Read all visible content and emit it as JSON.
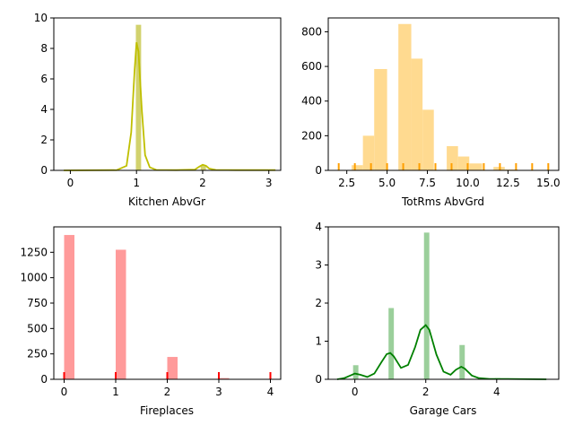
{
  "chart_data": [
    {
      "type": "histogram+kde",
      "xlabel": "Kitchen AbvGr",
      "ylabel": "",
      "xlim": [
        -0.25,
        3.18
      ],
      "ylim": [
        0,
        10
      ],
      "xticks": [
        0,
        1,
        2,
        3
      ],
      "yticks": [
        0,
        2,
        4,
        6,
        8,
        10
      ],
      "colors": {
        "fill": "#d2d26e",
        "line": "#bfbf00"
      },
      "bars": [
        {
          "x0": 0.99,
          "x1": 1.07,
          "value": 9.55
        },
        {
          "x0": 1.97,
          "x1": 2.05,
          "value": 0.35
        }
      ],
      "kde": [
        [
          -0.1,
          0
        ],
        [
          0.7,
          0.02
        ],
        [
          0.85,
          0.3
        ],
        [
          0.92,
          2.5
        ],
        [
          0.97,
          6.5
        ],
        [
          1.0,
          8.4
        ],
        [
          1.03,
          7.8
        ],
        [
          1.08,
          4.0
        ],
        [
          1.13,
          1.0
        ],
        [
          1.2,
          0.2
        ],
        [
          1.3,
          0.03
        ],
        [
          1.6,
          0.02
        ],
        [
          1.88,
          0.05
        ],
        [
          1.95,
          0.25
        ],
        [
          2.0,
          0.37
        ],
        [
          2.05,
          0.3
        ],
        [
          2.1,
          0.12
        ],
        [
          2.2,
          0.03
        ],
        [
          2.5,
          0.02
        ],
        [
          3.1,
          0.02
        ]
      ],
      "rug": []
    },
    {
      "type": "histogram+rug",
      "xlabel": "TotRms AbvGrd",
      "ylabel": "",
      "xlim": [
        1.35,
        15.65
      ],
      "ylim": [
        0,
        880
      ],
      "xticks": [
        2.5,
        5.0,
        7.5,
        10.0,
        12.5,
        15.0
      ],
      "xtick_labels": [
        "2.5",
        "5.0",
        "7.5",
        "10.0",
        "12.5",
        "15.0"
      ],
      "yticks": [
        0,
        200,
        400,
        600,
        800
      ],
      "colors": {
        "fill": "#ffda90",
        "rug": "#ff9f00"
      },
      "bars": [
        {
          "x0": 2.0,
          "x1": 2.8,
          "value": 0
        },
        {
          "x0": 2.8,
          "x1": 3.5,
          "value": 30
        },
        {
          "x0": 3.5,
          "x1": 4.2,
          "value": 200
        },
        {
          "x0": 4.2,
          "x1": 5.0,
          "value": 585
        },
        {
          "x0": 5.0,
          "x1": 5.7,
          "value": 0
        },
        {
          "x0": 5.7,
          "x1": 6.5,
          "value": 845
        },
        {
          "x0": 6.5,
          "x1": 7.2,
          "value": 645
        },
        {
          "x0": 7.2,
          "x1": 7.9,
          "value": 350
        },
        {
          "x0": 7.9,
          "x1": 8.7,
          "value": 0
        },
        {
          "x0": 8.7,
          "x1": 9.4,
          "value": 140
        },
        {
          "x0": 9.4,
          "x1": 10.1,
          "value": 80
        },
        {
          "x0": 10.1,
          "x1": 10.9,
          "value": 40
        },
        {
          "x0": 10.9,
          "x1": 11.6,
          "value": 0
        },
        {
          "x0": 11.6,
          "x1": 12.3,
          "value": 20
        },
        {
          "x0": 12.3,
          "x1": 13.1,
          "value": 5
        },
        {
          "x0": 13.1,
          "x1": 13.8,
          "value": 0
        },
        {
          "x0": 13.8,
          "x1": 14.5,
          "value": 0
        },
        {
          "x0": 14.5,
          "x1": 15.2,
          "value": 2
        }
      ],
      "rug": [
        2,
        3,
        4,
        5,
        6,
        7,
        8,
        9,
        10,
        11,
        12,
        13,
        14,
        15
      ],
      "kde": []
    },
    {
      "type": "histogram+rug",
      "xlabel": "Fireplaces",
      "ylabel": "",
      "xlim": [
        -0.2,
        4.2
      ],
      "ylim": [
        0,
        1500
      ],
      "xticks": [
        0,
        1,
        2,
        3,
        4
      ],
      "yticks": [
        0,
        250,
        500,
        750,
        1000,
        1250
      ],
      "colors": {
        "fill": "#ff9a9a",
        "rug": "#ff0000"
      },
      "bars": [
        {
          "x0": 0.0,
          "x1": 0.2,
          "value": 1420
        },
        {
          "x0": 0.2,
          "x1": 0.4,
          "value": 0
        },
        {
          "x0": 0.8,
          "x1": 1.0,
          "value": 0
        },
        {
          "x0": 1.0,
          "x1": 1.2,
          "value": 1275
        },
        {
          "x0": 1.8,
          "x1": 2.0,
          "value": 0
        },
        {
          "x0": 2.0,
          "x1": 2.2,
          "value": 220
        },
        {
          "x0": 2.8,
          "x1": 3.0,
          "value": 0
        },
        {
          "x0": 3.0,
          "x1": 3.2,
          "value": 12
        },
        {
          "x0": 3.8,
          "x1": 4.0,
          "value": 1
        }
      ],
      "rug": [
        0,
        1,
        2,
        3,
        4
      ],
      "kde": []
    },
    {
      "type": "histogram+kde",
      "xlabel": "Garage Cars",
      "ylabel": "",
      "xlim": [
        -0.75,
        5.75
      ],
      "ylim": [
        0,
        4
      ],
      "xticks": [
        0,
        2,
        4
      ],
      "yticks": [
        0,
        1,
        2,
        3,
        4
      ],
      "colors": {
        "fill": "#9bcf9b",
        "line": "#008000"
      },
      "bars": [
        {
          "x0": -0.05,
          "x1": 0.1,
          "value": 0.37
        },
        {
          "x0": 0.95,
          "x1": 1.1,
          "value": 1.87
        },
        {
          "x0": 1.95,
          "x1": 2.1,
          "value": 3.85
        },
        {
          "x0": 2.95,
          "x1": 3.1,
          "value": 0.9
        },
        {
          "x0": 3.95,
          "x1": 4.1,
          "value": 0.03
        },
        {
          "x0": 4.95,
          "x1": 5.1,
          "value": 0.01
        }
      ],
      "kde": [
        [
          -0.5,
          0
        ],
        [
          -0.3,
          0.03
        ],
        [
          -0.1,
          0.11
        ],
        [
          0.0,
          0.15
        ],
        [
          0.15,
          0.12
        ],
        [
          0.35,
          0.06
        ],
        [
          0.55,
          0.15
        ],
        [
          0.75,
          0.45
        ],
        [
          0.9,
          0.66
        ],
        [
          1.0,
          0.69
        ],
        [
          1.1,
          0.6
        ],
        [
          1.3,
          0.3
        ],
        [
          1.5,
          0.38
        ],
        [
          1.7,
          0.85
        ],
        [
          1.85,
          1.3
        ],
        [
          2.0,
          1.42
        ],
        [
          2.1,
          1.3
        ],
        [
          2.3,
          0.65
        ],
        [
          2.5,
          0.2
        ],
        [
          2.7,
          0.12
        ],
        [
          2.85,
          0.25
        ],
        [
          3.0,
          0.33
        ],
        [
          3.1,
          0.28
        ],
        [
          3.3,
          0.1
        ],
        [
          3.5,
          0.03
        ],
        [
          3.8,
          0.01
        ],
        [
          4.3,
          0.01
        ],
        [
          5.4,
          0
        ]
      ],
      "rug": []
    }
  ]
}
